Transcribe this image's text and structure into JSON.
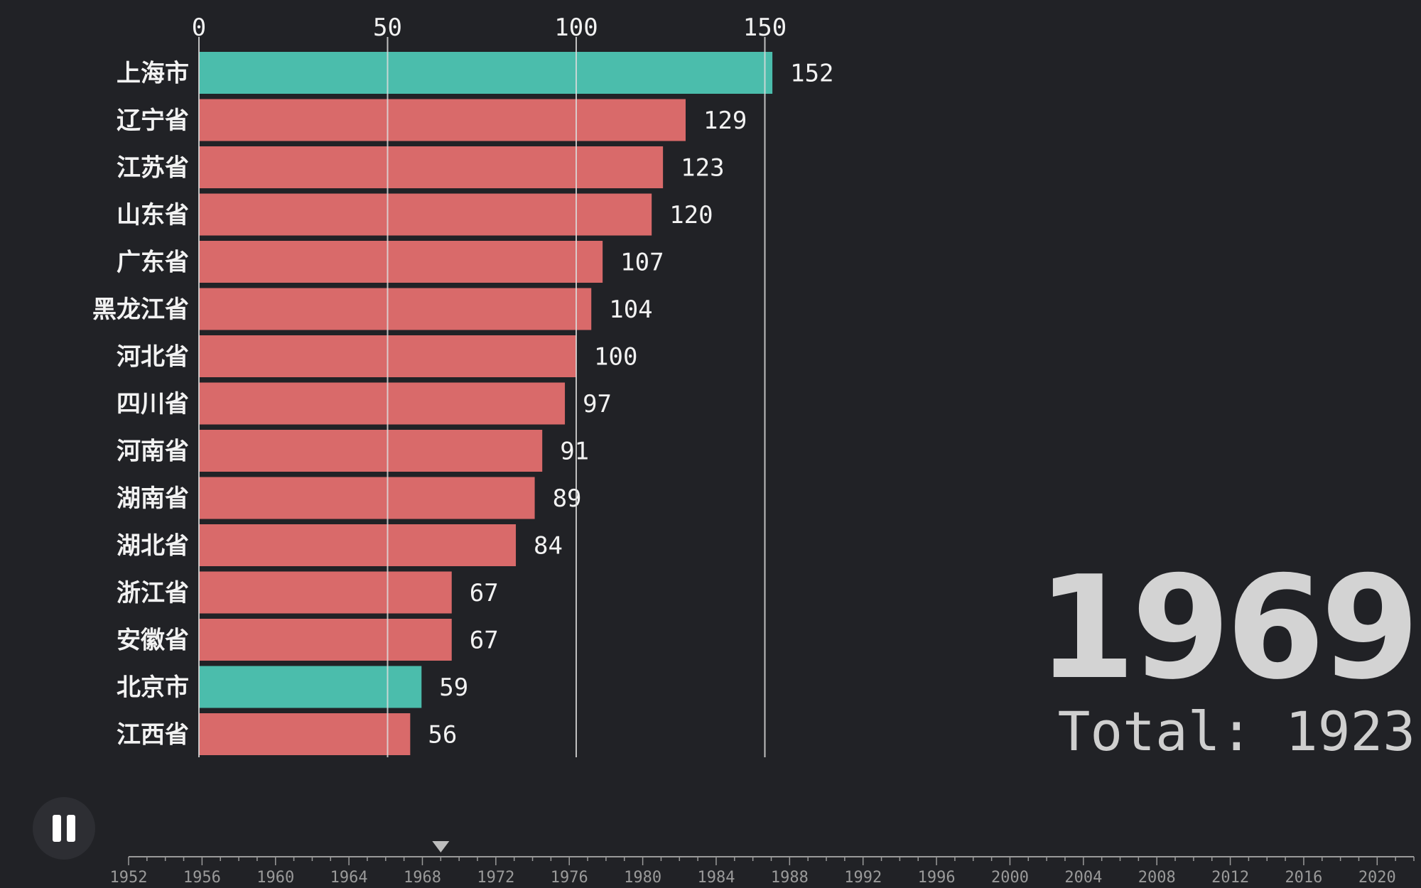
{
  "chart_data": {
    "type": "bar",
    "orientation": "horizontal",
    "categories": [
      "上海市",
      "辽宁省",
      "江苏省",
      "山东省",
      "广东省",
      "黑龙江省",
      "河北省",
      "四川省",
      "河南省",
      "湖南省",
      "湖北省",
      "浙江省",
      "安徽省",
      "北京市",
      "江西省"
    ],
    "values": [
      152,
      129,
      123,
      120,
      107,
      104,
      100,
      97,
      91,
      89,
      84,
      67,
      67,
      59,
      56
    ],
    "highlight": [
      true,
      false,
      false,
      false,
      false,
      false,
      false,
      false,
      false,
      false,
      false,
      false,
      false,
      true,
      false
    ],
    "colors": {
      "default": "#d96a6a",
      "highlight": "#4bbdac",
      "gridline": "#dcdcdc"
    },
    "x_ticks": [
      "0",
      "50",
      "100",
      "150"
    ],
    "xlim": [
      0,
      160
    ],
    "grid": true,
    "title": "",
    "xlabel": "",
    "ylabel": ""
  },
  "year": "1969",
  "total": "Total: 1923",
  "controls": {
    "pause_icon": "pause-icon",
    "state": "playing"
  },
  "timeline": {
    "labels": [
      "1952",
      "1956",
      "1960",
      "1964",
      "1968",
      "1972",
      "1976",
      "1980",
      "1984",
      "1988",
      "1992",
      "1996",
      "2000",
      "2004",
      "2008",
      "2012",
      "2016",
      "2020"
    ],
    "start": 1952,
    "end": 2022,
    "current": 1969
  }
}
